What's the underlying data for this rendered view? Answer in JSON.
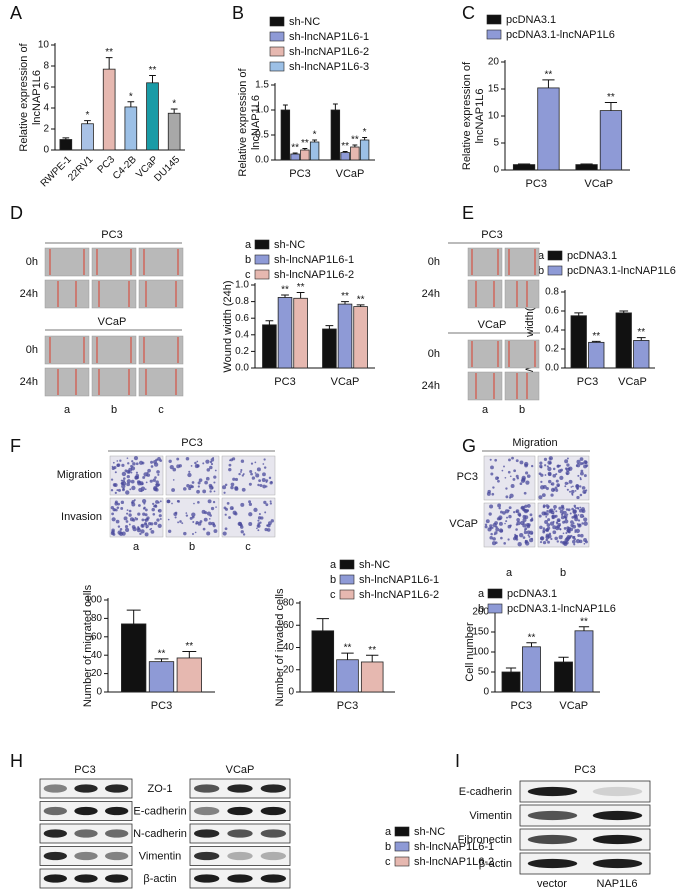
{
  "panels": {
    "labels": [
      "A",
      "B",
      "C",
      "D",
      "E",
      "F",
      "G",
      "H",
      "I"
    ],
    "d_images": {
      "titles": [
        "PC3",
        "VCaP"
      ],
      "rows": [
        "0h",
        "24h"
      ],
      "columns": [
        "a",
        "b",
        "c"
      ]
    },
    "e_images": {
      "titles": [
        "PC3",
        "VCaP"
      ],
      "rows": [
        "0h",
        "24h"
      ],
      "columns": [
        "a",
        "b"
      ]
    },
    "f_images": {
      "title": "PC3",
      "rows": [
        "Migration",
        "Invasion"
      ],
      "columns": [
        "a",
        "b",
        "c"
      ]
    },
    "g_images": {
      "title": "Migration",
      "rows": [
        "PC3",
        "VCaP"
      ],
      "columns": [
        "a",
        "b"
      ]
    },
    "h_blots": {
      "cell_lines": [
        "PC3",
        "VCaP"
      ],
      "proteins": [
        "ZO-1",
        "E-cadherin",
        "N-cadherin",
        "Vimentin",
        "β-actin"
      ],
      "legend": [
        {
          "key": "a",
          "name": "sh-NC",
          "color": "#111111"
        },
        {
          "key": "b",
          "name": "sh-lncNAP1L6-1",
          "color": "#8e9ad6"
        },
        {
          "key": "c",
          "name": "sh-lncNAP1L6-2",
          "color": "#e6b8b0"
        }
      ]
    },
    "i_blots": {
      "title": "PC3",
      "proteins": [
        "E-cadherin",
        "Vimentin",
        "Fibronectin",
        "β-actin"
      ],
      "lanes": [
        "vector",
        "NAP1L6"
      ]
    }
  },
  "chart_data": [
    {
      "type": "bar",
      "ylabel": [
        "Relative expression of",
        "lncNAP1L6"
      ],
      "categories": [
        "RWPE-1",
        "22RV1",
        "PC3",
        "C4-2B",
        "VCaP",
        "DU145"
      ],
      "values": [
        1.0,
        2.5,
        7.7,
        4.1,
        6.4,
        3.5
      ],
      "errors": [
        0.15,
        0.3,
        1.1,
        0.5,
        0.7,
        0.4
      ],
      "significance": [
        null,
        "*",
        "**",
        "*",
        "**",
        "*"
      ],
      "colors": [
        "#111111",
        "#a9c2e6",
        "#e6b8b0",
        "#9cc0e6",
        "#1a9ba6",
        "#a8a8a8"
      ],
      "ylim": [
        0,
        10
      ],
      "yticks": [
        0,
        2,
        4,
        6,
        8,
        10
      ]
    },
    {
      "type": "bar",
      "ylabel": [
        "Relative expression of",
        "lncNAP1L6"
      ],
      "categories": [
        "PC3",
        "VCaP"
      ],
      "series": [
        {
          "name": "sh-NC",
          "color": "#111111",
          "values": [
            1.0,
            1.0
          ],
          "errors": [
            0.1,
            0.12
          ],
          "significance": [
            null,
            null
          ]
        },
        {
          "name": "sh-lncNAP1L6-1",
          "color": "#8e9ad6",
          "values": [
            0.12,
            0.15
          ],
          "errors": [
            0.02,
            0.02
          ],
          "significance": [
            "**",
            "**"
          ]
        },
        {
          "name": "sh-lncNAP1L6-2",
          "color": "#e6b8b0",
          "values": [
            0.2,
            0.26
          ],
          "errors": [
            0.03,
            0.04
          ],
          "significance": [
            "**",
            "**"
          ]
        },
        {
          "name": "sh-lncNAP1L6-3",
          "color": "#9cc0e6",
          "values": [
            0.36,
            0.4
          ],
          "errors": [
            0.04,
            0.05
          ],
          "significance": [
            "*",
            "*"
          ]
        }
      ],
      "ylim": [
        0,
        1.5
      ],
      "yticks": [
        {
          "value": 0,
          "label": "0.0"
        },
        0.5,
        {
          "value": 1,
          "label": "1.0"
        },
        1.5
      ]
    },
    {
      "type": "bar",
      "ylabel": [
        "Relative expression of",
        "lncNAP1L6"
      ],
      "categories": [
        "PC3",
        "VCaP"
      ],
      "series": [
        {
          "name": "pcDNA3.1",
          "color": "#111111",
          "values": [
            1.0,
            1.0
          ],
          "errors": [
            0.1,
            0.1
          ],
          "significance": [
            null,
            null
          ]
        },
        {
          "name": "pcDNA3.1-lncNAP1L6",
          "color": "#8e9ad6",
          "values": [
            15.2,
            11.0
          ],
          "errors": [
            1.5,
            1.5
          ],
          "significance": [
            "**",
            "**"
          ]
        }
      ],
      "ylim": [
        0,
        20
      ],
      "yticks": [
        0,
        5,
        10,
        15,
        20
      ]
    },
    {
      "type": "bar",
      "ylabel": [
        "Wound width (24h)"
      ],
      "categories": [
        "PC3",
        "VCaP"
      ],
      "series": [
        {
          "key": "a",
          "name": "sh-NC",
          "color": "#111111",
          "values": [
            0.52,
            0.47
          ],
          "errors": [
            0.05,
            0.04
          ],
          "significance": [
            null,
            null
          ]
        },
        {
          "key": "b",
          "name": "sh-lncNAP1L6-1",
          "color": "#8e9ad6",
          "values": [
            0.85,
            0.77
          ],
          "errors": [
            0.03,
            0.03
          ],
          "significance": [
            "**",
            "**"
          ]
        },
        {
          "key": "c",
          "name": "sh-lncNAP1L6-2",
          "color": "#e6b8b0",
          "values": [
            0.84,
            0.74
          ],
          "errors": [
            0.07,
            0.02
          ],
          "significance": [
            "**",
            "**"
          ]
        }
      ],
      "ylim": [
        0,
        1
      ],
      "yticks": [
        {
          "value": 0,
          "label": "0.0"
        },
        0.2,
        0.4,
        0.6,
        0.8,
        {
          "value": 1,
          "label": "1.0"
        }
      ]
    },
    {
      "type": "bar",
      "ylabel": [
        "Wound width(24h)"
      ],
      "categories": [
        "PC3",
        "VCaP"
      ],
      "series": [
        {
          "key": "a",
          "name": "pcDNA3.1",
          "color": "#111111",
          "values": [
            0.55,
            0.58
          ],
          "errors": [
            0.03,
            0.02
          ],
          "significance": [
            null,
            null
          ]
        },
        {
          "key": "b",
          "name": "pcDNA3.1-lncNAP1L6",
          "color": "#8e9ad6",
          "values": [
            0.27,
            0.29
          ],
          "errors": [
            0.01,
            0.03
          ],
          "significance": [
            "**",
            "**"
          ]
        }
      ],
      "ylim": [
        0,
        0.8
      ],
      "yticks": [
        {
          "value": 0,
          "label": "0.0"
        },
        0.2,
        0.4,
        0.6,
        0.8
      ]
    },
    {
      "type": "bar",
      "ylabel": [
        "Number of migrated cells"
      ],
      "categories": [
        "PC3"
      ],
      "series": [
        {
          "color": "#111111",
          "values": [
            74
          ],
          "errors": [
            15
          ],
          "significance": [
            null
          ]
        },
        {
          "color": "#8e9ad6",
          "values": [
            33
          ],
          "errors": [
            3
          ],
          "significance": [
            "**"
          ]
        },
        {
          "color": "#e6b8b0",
          "values": [
            37
          ],
          "errors": [
            7
          ],
          "significance": [
            "**"
          ]
        }
      ],
      "ylim": [
        0,
        100
      ],
      "yticks": [
        0,
        20,
        40,
        60,
        80,
        100
      ]
    },
    {
      "type": "bar",
      "ylabel": [
        "Number of invaded cells"
      ],
      "categories": [
        "PC3"
      ],
      "series": [
        {
          "key": "a",
          "name": "sh-NC",
          "color": "#111111",
          "values": [
            55
          ],
          "errors": [
            11
          ],
          "significance": [
            null
          ]
        },
        {
          "key": "b",
          "name": "sh-lncNAP1L6-1",
          "color": "#8e9ad6",
          "values": [
            29
          ],
          "errors": [
            6
          ],
          "significance": [
            "**"
          ]
        },
        {
          "key": "c",
          "name": "sh-lncNAP1L6-2",
          "color": "#e6b8b0",
          "values": [
            27
          ],
          "errors": [
            6
          ],
          "significance": [
            "**"
          ]
        }
      ],
      "ylim": [
        0,
        80
      ],
      "yticks": [
        0,
        20,
        40,
        60,
        80
      ]
    },
    {
      "type": "bar",
      "ylabel": [
        "Cell number"
      ],
      "categories": [
        "PC3",
        "VCaP"
      ],
      "series": [
        {
          "key": "a",
          "name": "pcDNA3.1",
          "color": "#111111",
          "values": [
            50,
            75
          ],
          "errors": [
            10,
            12
          ],
          "significance": [
            null,
            null
          ]
        },
        {
          "key": "b",
          "name": "pcDNA3.1-lncNAP1L6",
          "color": "#8e9ad6",
          "values": [
            113,
            153
          ],
          "errors": [
            10,
            10
          ],
          "significance": [
            "**",
            "**"
          ]
        }
      ],
      "ylim": [
        0,
        200
      ],
      "yticks": [
        0,
        50,
        100,
        150,
        200
      ]
    }
  ]
}
